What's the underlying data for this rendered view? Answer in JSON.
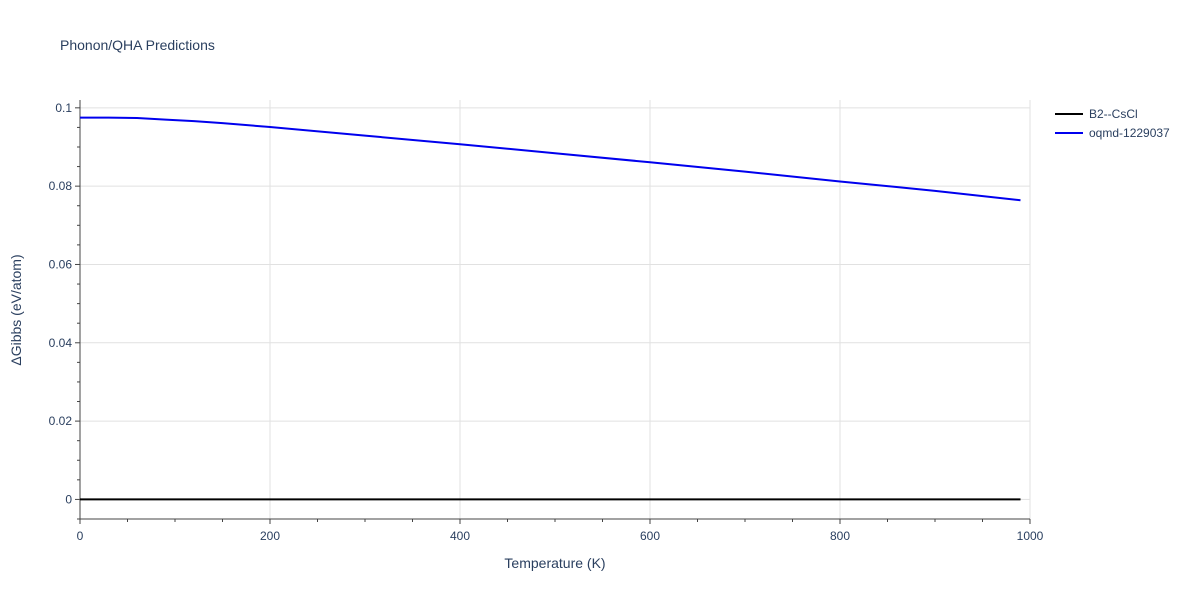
{
  "chart_data": {
    "type": "line",
    "title": "Phonon/QHA Predictions",
    "xlabel": "Temperature (K)",
    "ylabel": "ΔGibbs (eV/atom)",
    "xlim": [
      0,
      1000
    ],
    "ylim": [
      -0.005,
      0.102
    ],
    "x_ticks": [
      0,
      200,
      400,
      600,
      800,
      1000
    ],
    "x_tick_labels": [
      "0",
      "200",
      "400",
      "600",
      "800",
      "1000"
    ],
    "y_ticks": [
      0,
      0.02,
      0.04,
      0.06,
      0.08,
      0.1
    ],
    "y_tick_labels": [
      "0",
      "0.02",
      "0.04",
      "0.06",
      "0.08",
      "0.1"
    ],
    "grid": true,
    "legend_position": "top-right",
    "series": [
      {
        "name": "B2--CsCl",
        "color": "#000000",
        "x": [
          0,
          990
        ],
        "y": [
          0,
          0
        ]
      },
      {
        "name": "oqmd-1229037",
        "color": "#0000ee",
        "x": [
          0,
          30,
          60,
          90,
          120,
          150,
          200,
          300,
          400,
          500,
          600,
          700,
          800,
          900,
          990
        ],
        "y": [
          0.0975,
          0.0975,
          0.0974,
          0.097,
          0.0966,
          0.0961,
          0.0951,
          0.0929,
          0.0907,
          0.0884,
          0.0861,
          0.0837,
          0.0812,
          0.0788,
          0.0764
        ]
      }
    ]
  }
}
